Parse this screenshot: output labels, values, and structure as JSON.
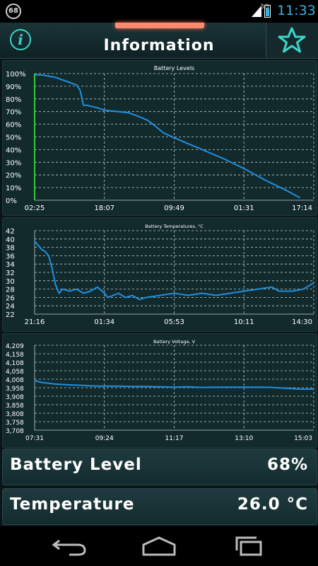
{
  "status_bar": {
    "notification_count": "68",
    "network": "3G",
    "time": "11:33",
    "battery_level": 0.68
  },
  "header": {
    "title": "Information"
  },
  "charts": {
    "levels": {
      "title": "Battery Levels",
      "y_ticks": [
        "100%",
        "90%",
        "80%",
        "70%",
        "60%",
        "50%",
        "40%",
        "30%",
        "20%",
        "10%",
        "0%"
      ],
      "x_ticks": [
        "02:25",
        "18:07",
        "09:49",
        "01:31",
        "17:14"
      ]
    },
    "temps": {
      "title": "Battery Temperatures, °C",
      "y_ticks": [
        "42",
        "40",
        "38",
        "36",
        "34",
        "32",
        "30",
        "28",
        "26",
        "24",
        "22"
      ],
      "x_ticks": [
        "21:16",
        "01:34",
        "05:53",
        "10:11",
        "14:30"
      ]
    },
    "voltage": {
      "title": "Battery Voltage, V",
      "y_ticks": [
        "4,209",
        "4,158",
        "4,108",
        "4,058",
        "4,008",
        "3,958",
        "3,908",
        "3,858",
        "3,808",
        "3,758",
        "3,708"
      ],
      "x_ticks": [
        "07:31",
        "09:24",
        "11:17",
        "13:10",
        "15:03"
      ]
    }
  },
  "chart_data": [
    {
      "type": "line",
      "title": "Battery Levels",
      "x": [
        "02:25",
        "18:07",
        "09:49",
        "01:31",
        "17:14"
      ],
      "ylim": [
        0,
        100
      ],
      "series": [
        {
          "points": [
            [
              0,
              99
            ],
            [
              0.1,
              99
            ],
            [
              0.2,
              98
            ],
            [
              0.3,
              97
            ],
            [
              0.4,
              95
            ],
            [
              0.5,
              93
            ],
            [
              0.55,
              92
            ],
            [
              0.6,
              91
            ],
            [
              0.65,
              87
            ],
            [
              0.7,
              75
            ],
            [
              0.75,
              75
            ],
            [
              0.9,
              73
            ],
            [
              1.0,
              71
            ],
            [
              1.2,
              70
            ],
            [
              1.35,
              69
            ],
            [
              1.5,
              66
            ],
            [
              1.62,
              63
            ],
            [
              1.72,
              59
            ],
            [
              1.85,
              53
            ],
            [
              2.1,
              47
            ],
            [
              2.4,
              40
            ],
            [
              2.7,
              33
            ],
            [
              3.0,
              25
            ],
            [
              3.3,
              16
            ],
            [
              3.6,
              8
            ],
            [
              3.8,
              2
            ]
          ]
        }
      ],
      "grid": true
    },
    {
      "type": "line",
      "title": "Battery Temperatures, °C",
      "x": [
        "21:16",
        "01:34",
        "05:53",
        "10:11",
        "14:30"
      ],
      "ylim": [
        22,
        42
      ],
      "series": [
        {
          "points": [
            [
              0,
              39.5
            ],
            [
              0.05,
              38.5
            ],
            [
              0.1,
              37.5
            ],
            [
              0.15,
              37
            ],
            [
              0.2,
              36
            ],
            [
              0.25,
              33
            ],
            [
              0.3,
              29
            ],
            [
              0.35,
              27
            ],
            [
              0.4,
              28
            ],
            [
              0.5,
              27.5
            ],
            [
              0.6,
              28
            ],
            [
              0.7,
              27
            ],
            [
              0.8,
              27.5
            ],
            [
              0.9,
              28.5
            ],
            [
              1.0,
              27
            ],
            [
              1.05,
              26
            ],
            [
              1.2,
              27
            ],
            [
              1.3,
              26
            ],
            [
              1.4,
              26.5
            ],
            [
              1.5,
              25.5
            ],
            [
              1.6,
              26
            ],
            [
              1.8,
              26.5
            ],
            [
              2.0,
              27
            ],
            [
              2.2,
              26.5
            ],
            [
              2.4,
              27
            ],
            [
              2.6,
              26.5
            ],
            [
              2.8,
              27
            ],
            [
              3.0,
              27.5
            ],
            [
              3.2,
              28
            ],
            [
              3.4,
              28.5
            ],
            [
              3.5,
              27.5
            ],
            [
              3.7,
              27.5
            ],
            [
              3.85,
              28
            ],
            [
              4.0,
              29.5
            ]
          ]
        }
      ],
      "grid": true
    },
    {
      "type": "line",
      "title": "Battery Voltage, V",
      "x": [
        "07:31",
        "09:24",
        "11:17",
        "13:10",
        "15:03"
      ],
      "ylim": [
        3.708,
        4.209
      ],
      "series": [
        {
          "points": [
            [
              0,
              4.0
            ],
            [
              0.1,
              3.99
            ],
            [
              0.2,
              3.985
            ],
            [
              0.3,
              3.98
            ],
            [
              0.5,
              3.975
            ],
            [
              0.7,
              3.972
            ],
            [
              0.9,
              3.968
            ],
            [
              1.0,
              3.968
            ],
            [
              1.2,
              3.968
            ],
            [
              1.4,
              3.966
            ],
            [
              1.6,
              3.966
            ],
            [
              1.8,
              3.964
            ],
            [
              2.0,
              3.962
            ],
            [
              2.2,
              3.964
            ],
            [
              2.4,
              3.96
            ],
            [
              2.6,
              3.962
            ],
            [
              2.8,
              3.962
            ],
            [
              3.0,
              3.962
            ],
            [
              3.2,
              3.962
            ],
            [
              3.4,
              3.96
            ],
            [
              3.6,
              3.955
            ],
            [
              3.8,
              3.95
            ],
            [
              4.0,
              3.95
            ]
          ]
        }
      ],
      "grid": true
    }
  ],
  "info": {
    "level_label": "Battery Level",
    "level_value": "68%",
    "temp_label": "Temperature",
    "temp_value": "26.0 °C"
  },
  "colors": {
    "accent": "#3fd3c8",
    "line": "#1e8fe0",
    "level_axis": "#35c93a",
    "clock": "#33b5e5"
  },
  "icons": {
    "info": "info-icon",
    "favorite": "star-icon",
    "back": "back-arrow-icon",
    "home": "home-icon",
    "recents": "recent-apps-icon"
  }
}
